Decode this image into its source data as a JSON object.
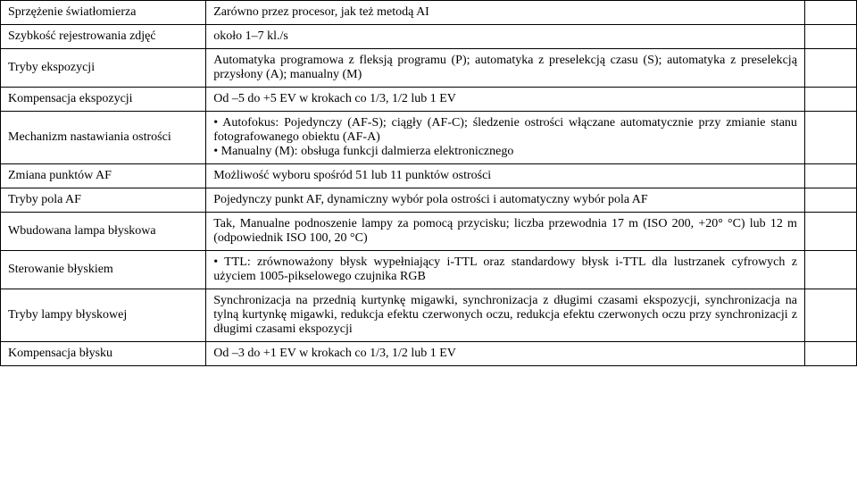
{
  "rows": [
    {
      "label": "Sprzężenie światłomierza",
      "value": "Zarówno przez procesor, jak też metodą AI",
      "value_class": ""
    },
    {
      "label": "Szybkość rejestrowania zdjęć",
      "value": "około 1–7 kl./s",
      "value_class": ""
    },
    {
      "label": "Tryby ekspozycji",
      "value": "Automatyka programowa z fleksją programu (P); automatyka z preselekcją czasu (S); automatyka z preselekcją przysłony (A); manualny (M)",
      "value_class": "j"
    },
    {
      "label": "Kompensacja ekspozycji",
      "value": "Od –5 do +5 EV w krokach co 1/3, 1/2 lub 1 EV",
      "value_class": ""
    },
    {
      "label": "Mechanizm nastawiania ostrości",
      "value": "• Autofokus: Pojedynczy (AF-S); ciągły (AF-C); śledzenie ostrości włączane automatycznie przy zmianie stanu fotografowanego obiektu (AF-A)\n• Manualny (M): obsługa funkcji dalmierza elektronicznego",
      "value_class": "j"
    },
    {
      "label": "Zmiana punktów AF",
      "value": "Możliwość wyboru spośród 51 lub 11 punktów ostrości",
      "value_class": ""
    },
    {
      "label": "Tryby pola AF",
      "value": "Pojedynczy punkt AF, dynamiczny wybór pola ostrości i automatyczny wybór pola AF",
      "value_class": "j"
    },
    {
      "label": "Wbudowana lampa błyskowa",
      "value": "Tak, Manualne podnoszenie lampy za pomocą przycisku; liczba przewodnia 17 m (ISO 200, +20° °C) lub 12 m (odpowiednik ISO 100, 20 °C)",
      "value_class": "j"
    },
    {
      "label": "Sterowanie błyskiem",
      "value": "• TTL: zrównoważony błysk wypełniający i-TTL oraz standardowy błysk i-TTL dla lustrzanek cyfrowych z użyciem 1005-pikselowego czujnika RGB",
      "value_class": "j"
    },
    {
      "label": "Tryby lampy błyskowej",
      "value": "Synchronizacja na przednią kurtynkę migawki, synchronizacja z długimi czasami ekspozycji, synchronizacja na tylną kurtynkę migawki, redukcja efektu czerwonych oczu, redukcja efektu czerwonych oczu przy synchronizacji z długimi czasami ekspozycji",
      "value_class": "j"
    },
    {
      "label": "Kompensacja błysku",
      "value": "Od –3 do +1 EV w krokach co 1/3, 1/2 lub 1 EV",
      "value_class": ""
    }
  ]
}
